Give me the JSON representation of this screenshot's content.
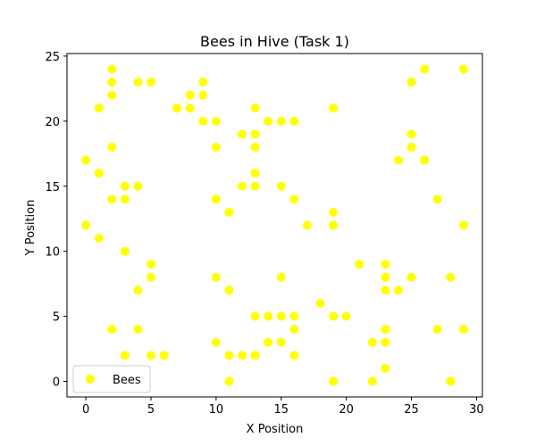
{
  "chart_data": {
    "type": "scatter",
    "title": "Bees in Hive (Task 1)",
    "xlabel": "X Position",
    "ylabel": "Y Position",
    "xlim": [
      -1.45,
      30.45
    ],
    "ylim": [
      -1.2,
      25.2
    ],
    "xticks": [
      0,
      5,
      10,
      15,
      20,
      25,
      30
    ],
    "yticks": [
      0,
      5,
      10,
      15,
      20,
      25
    ],
    "grid": false,
    "legend_position": "lower-left",
    "series": [
      {
        "name": "Bees",
        "color": "#ffff00",
        "points": [
          [
            0,
            17
          ],
          [
            0,
            12
          ],
          [
            1,
            21
          ],
          [
            1,
            16
          ],
          [
            1,
            11
          ],
          [
            2,
            24
          ],
          [
            2,
            23
          ],
          [
            2,
            22
          ],
          [
            2,
            18
          ],
          [
            2,
            14
          ],
          [
            2,
            4
          ],
          [
            3,
            15
          ],
          [
            3,
            14
          ],
          [
            3,
            10
          ],
          [
            3,
            2
          ],
          [
            4,
            23
          ],
          [
            4,
            15
          ],
          [
            4,
            7
          ],
          [
            4,
            4
          ],
          [
            5,
            23
          ],
          [
            5,
            9
          ],
          [
            5,
            8
          ],
          [
            5,
            2
          ],
          [
            6,
            2
          ],
          [
            7,
            21
          ],
          [
            8,
            22
          ],
          [
            8,
            21
          ],
          [
            9,
            23
          ],
          [
            9,
            22
          ],
          [
            9,
            20
          ],
          [
            10,
            20
          ],
          [
            10,
            18
          ],
          [
            10,
            14
          ],
          [
            10,
            8
          ],
          [
            10,
            3
          ],
          [
            11,
            13
          ],
          [
            11,
            7
          ],
          [
            11,
            2
          ],
          [
            11,
            0
          ],
          [
            12,
            19
          ],
          [
            12,
            15
          ],
          [
            12,
            2
          ],
          [
            13,
            21
          ],
          [
            13,
            19
          ],
          [
            13,
            18
          ],
          [
            13,
            16
          ],
          [
            13,
            15
          ],
          [
            13,
            5
          ],
          [
            13,
            2
          ],
          [
            14,
            20
          ],
          [
            14,
            5
          ],
          [
            14,
            3
          ],
          [
            15,
            20
          ],
          [
            15,
            15
          ],
          [
            15,
            8
          ],
          [
            15,
            5
          ],
          [
            15,
            3
          ],
          [
            16,
            20
          ],
          [
            16,
            14
          ],
          [
            16,
            5
          ],
          [
            16,
            4
          ],
          [
            16,
            2
          ],
          [
            17,
            12
          ],
          [
            18,
            6
          ],
          [
            19,
            21
          ],
          [
            19,
            13
          ],
          [
            19,
            12
          ],
          [
            19,
            5
          ],
          [
            19,
            0
          ],
          [
            20,
            5
          ],
          [
            21,
            9
          ],
          [
            22,
            3
          ],
          [
            22,
            0
          ],
          [
            23,
            9
          ],
          [
            23,
            8
          ],
          [
            23,
            7
          ],
          [
            23,
            4
          ],
          [
            23,
            3
          ],
          [
            23,
            1
          ],
          [
            24,
            17
          ],
          [
            24,
            7
          ],
          [
            25,
            23
          ],
          [
            25,
            19
          ],
          [
            25,
            18
          ],
          [
            25,
            8
          ],
          [
            26,
            24
          ],
          [
            26,
            17
          ],
          [
            27,
            14
          ],
          [
            27,
            4
          ],
          [
            28,
            8
          ],
          [
            28,
            0
          ],
          [
            29,
            24
          ],
          [
            29,
            12
          ],
          [
            29,
            4
          ]
        ]
      }
    ]
  }
}
